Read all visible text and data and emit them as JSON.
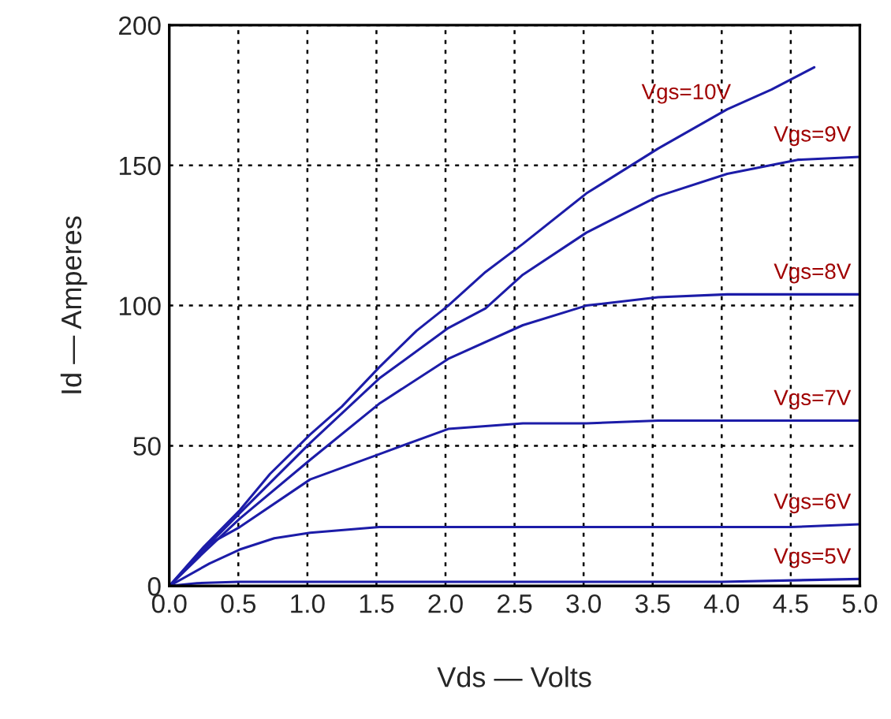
{
  "chart_data": {
    "type": "line",
    "xlabel": "Vds — Volts",
    "ylabel": "Id — Amperes",
    "xlim": [
      0,
      5
    ],
    "ylim": [
      0,
      200
    ],
    "xticks": [
      {
        "value": 0,
        "label": "0.0"
      },
      {
        "value": 0.5,
        "label": "0.5"
      },
      {
        "value": 1,
        "label": "1.0"
      },
      {
        "value": 1.5,
        "label": "1.5"
      },
      {
        "value": 2,
        "label": "2.0"
      },
      {
        "value": 2.5,
        "label": "2.5"
      },
      {
        "value": 3,
        "label": "3.0"
      },
      {
        "value": 3.5,
        "label": "3.5"
      },
      {
        "value": 4,
        "label": "4.0"
      },
      {
        "value": 4.5,
        "label": "4.5"
      },
      {
        "value": 5,
        "label": "5.0"
      }
    ],
    "yticks": [
      0,
      50,
      100,
      150,
      200
    ],
    "grid": true,
    "marker": "none",
    "line_style": "solid",
    "series": [
      {
        "name": "Vgs=10V",
        "color": "#1c1ca8",
        "x": [
          0,
          0.25,
          0.51,
          0.73,
          1.02,
          1.25,
          1.52,
          1.79,
          2.02,
          2.29,
          2.56,
          3.02,
          3.54,
          4.04,
          4.36,
          4.67
        ],
        "values": [
          0,
          14,
          27,
          40,
          54,
          64,
          78,
          91,
          100,
          112,
          122,
          140,
          156,
          170,
          177,
          185
        ]
      },
      {
        "name": "Vgs=9V",
        "color": "#1c1ca8",
        "x": [
          0,
          0.25,
          0.51,
          1.02,
          1.52,
          2.02,
          2.29,
          2.56,
          3.02,
          3.54,
          4.04,
          4.55,
          5.0
        ],
        "values": [
          0,
          13,
          26,
          51,
          74,
          92,
          99,
          111,
          126,
          139,
          147,
          152,
          153
        ]
      },
      {
        "name": "Vgs=8V",
        "color": "#1c1ca8",
        "x": [
          0,
          0.25,
          0.51,
          1.02,
          1.52,
          2.02,
          2.56,
          3.02,
          3.54,
          4.04,
          5.0
        ],
        "values": [
          0,
          12,
          24,
          45,
          65,
          81,
          93,
          100,
          103,
          104,
          104
        ]
      },
      {
        "name": "Vgs=7V",
        "color": "#1c1ca8",
        "x": [
          0,
          0.29,
          0.51,
          1.02,
          1.52,
          2.02,
          2.56,
          3.02,
          3.54,
          5.0
        ],
        "values": [
          0,
          15,
          21,
          38,
          47,
          56,
          58,
          58,
          59,
          59
        ]
      },
      {
        "name": "Vgs=6V",
        "color": "#1c1ca8",
        "x": [
          0,
          0.29,
          0.51,
          0.76,
          1.02,
          1.52,
          2.02,
          3.02,
          4.5,
          5.0
        ],
        "values": [
          0,
          8,
          13,
          17,
          19,
          21,
          21,
          21,
          21,
          22
        ]
      },
      {
        "name": "Vgs=5V",
        "color": "#1c1ca8",
        "x": [
          0,
          0.2,
          0.5,
          2.0,
          4.0,
          5.0
        ],
        "values": [
          0,
          1,
          1.5,
          1.5,
          1.5,
          2.5
        ]
      }
    ]
  }
}
